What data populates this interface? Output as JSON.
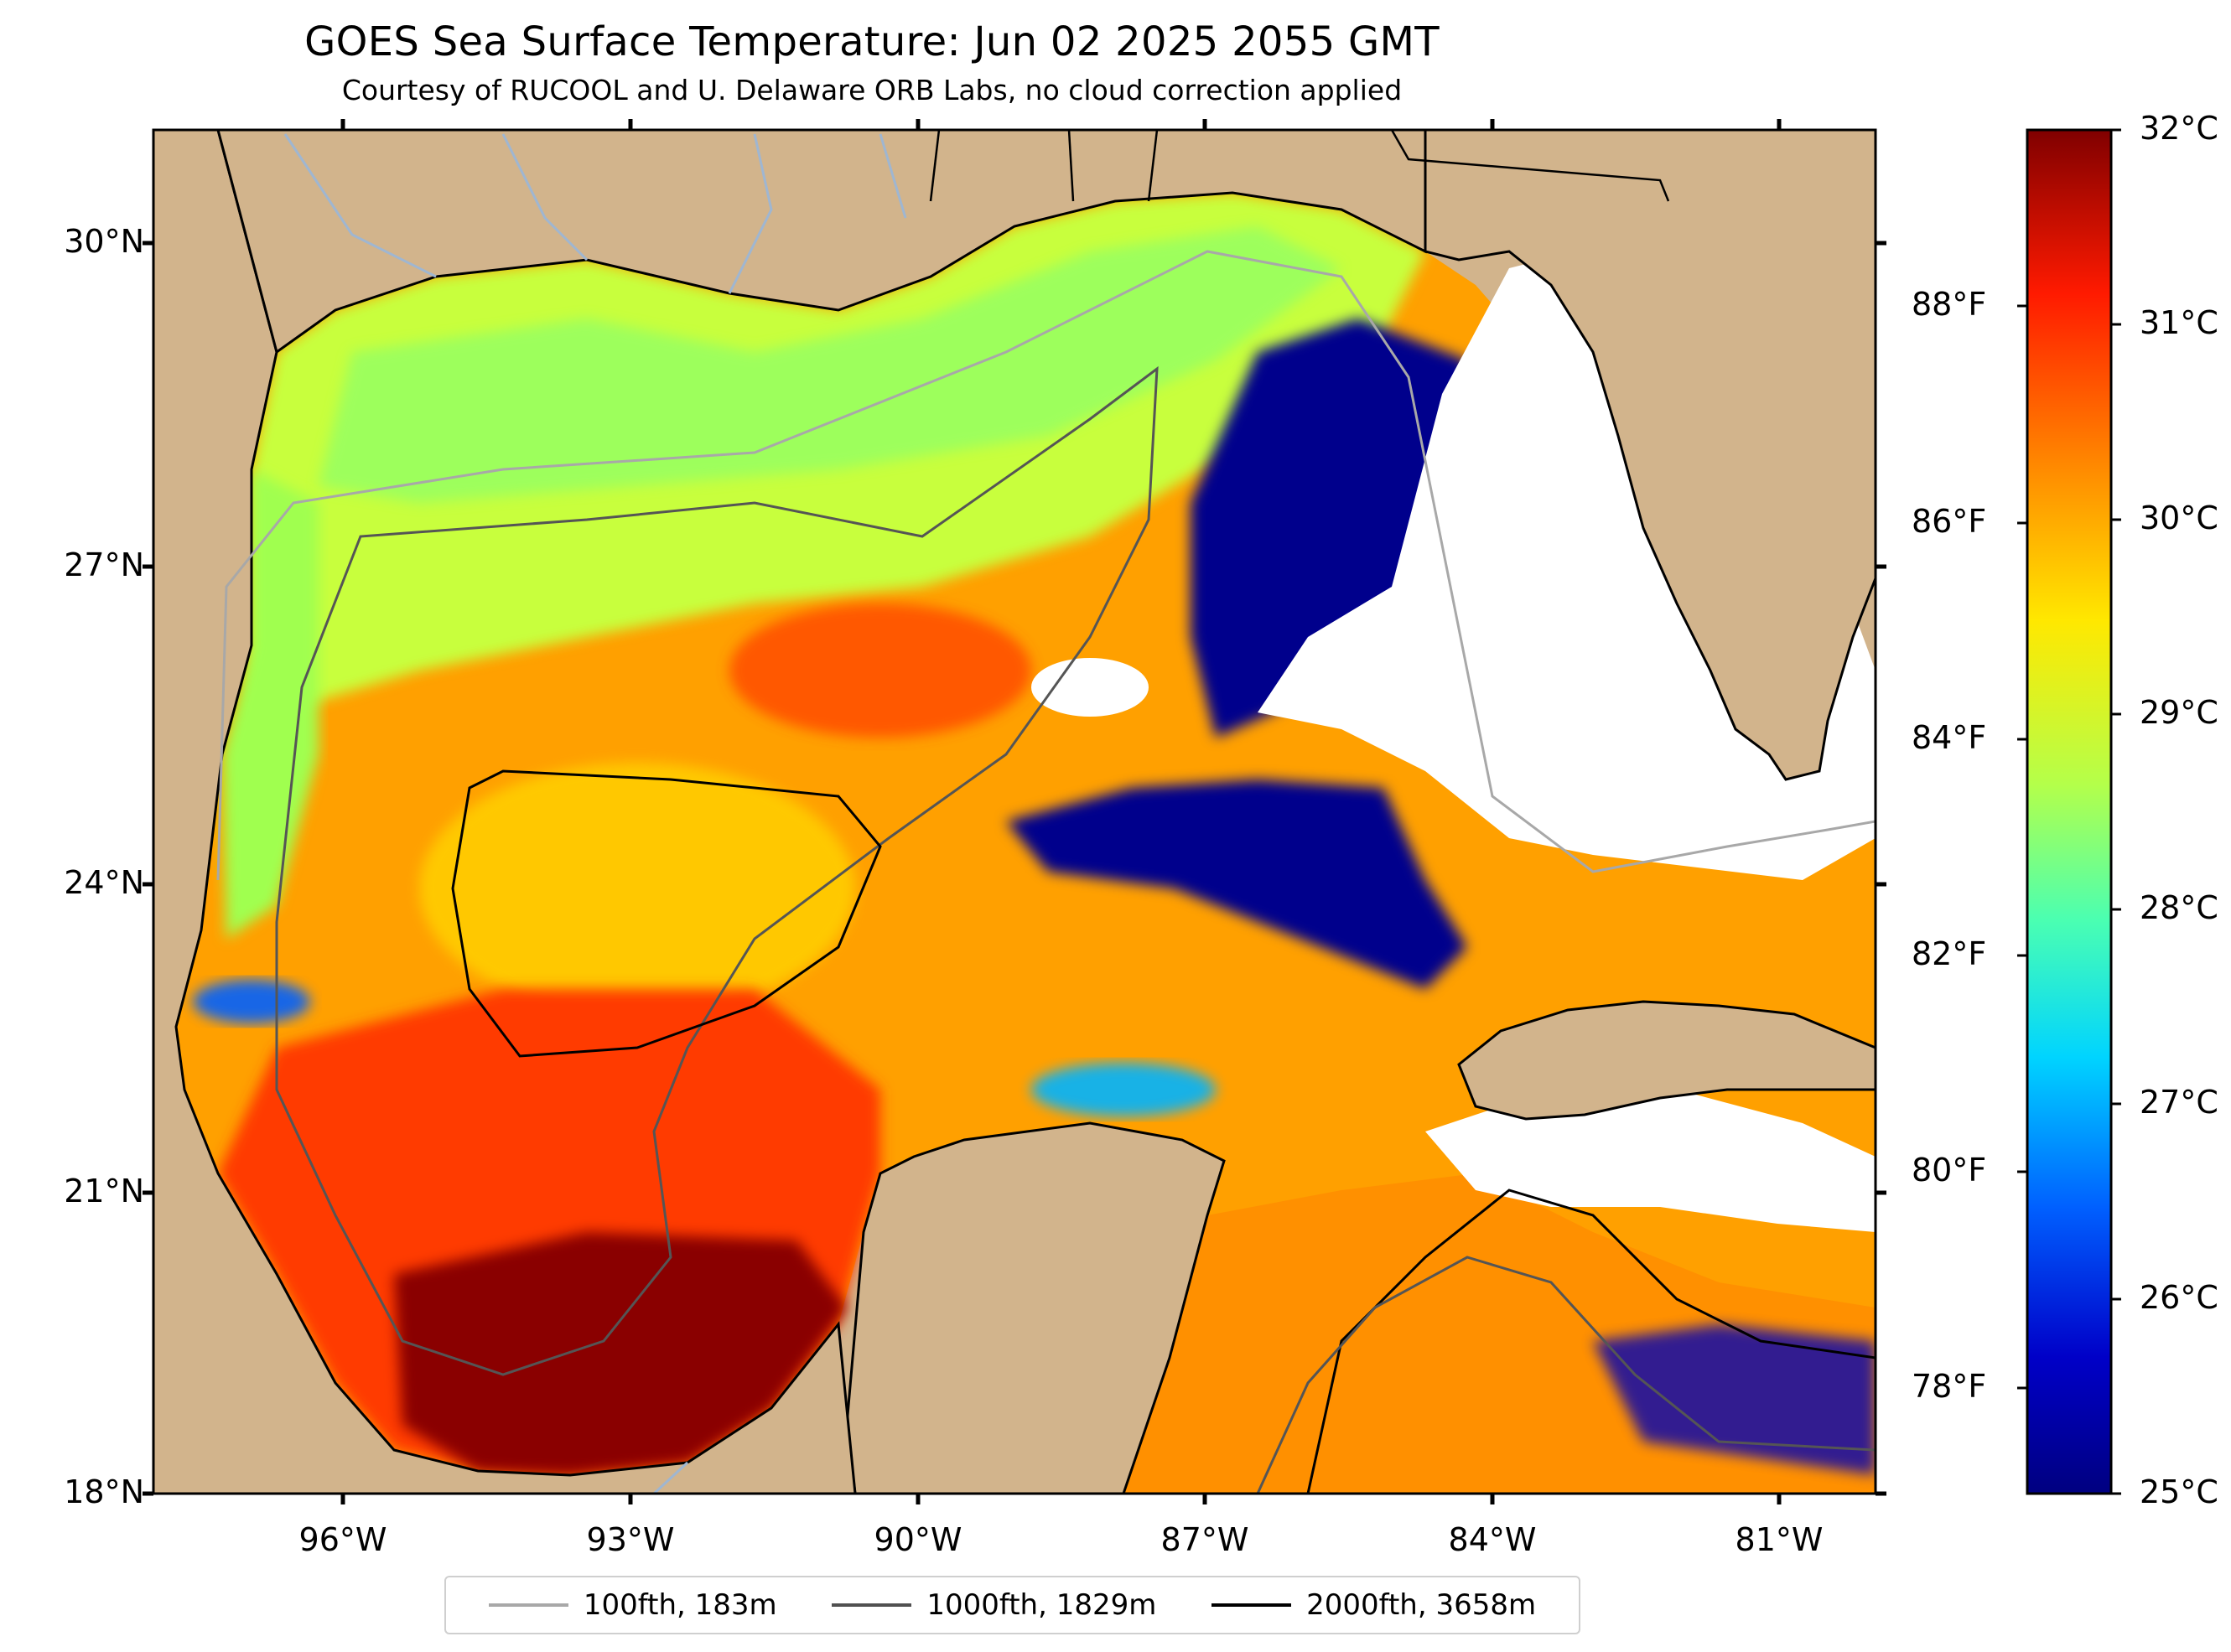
{
  "header": {
    "title": "GOES Sea Surface Temperature: Jun 02 2025 2055 GMT",
    "subtitle": "Courtesy of RUCOOL and U. Delaware ORB Labs, no cloud correction applied"
  },
  "axes": {
    "lat_labels": [
      "30°N",
      "27°N",
      "24°N",
      "21°N",
      "18°N"
    ],
    "lon_labels": [
      "96°W",
      "93°W",
      "90°W",
      "87°W",
      "84°W",
      "81°W"
    ]
  },
  "colorbar": {
    "celsius_labels": [
      "32°C",
      "31°C",
      "30°C",
      "29°C",
      "28°C",
      "27°C",
      "26°C",
      "25°C"
    ],
    "fahrenheit_labels": [
      "88°F",
      "86°F",
      "84°F",
      "82°F",
      "80°F",
      "78°F"
    ],
    "colors": [
      "#800000",
      "#ff2000",
      "#ff8c00",
      "#ffe800",
      "#b4ff4a",
      "#4affb2",
      "#00d4ff",
      "#0060ff",
      "#0000c8",
      "#000080"
    ]
  },
  "legend": {
    "items": [
      {
        "label": "100fth, 183m",
        "color": "#a8a8a8"
      },
      {
        "label": "1000fth, 1829m",
        "color": "#505050"
      },
      {
        "label": "2000fth, 3658m",
        "color": "#000000"
      }
    ]
  },
  "map_colors": {
    "land": "#d2b48c",
    "no_data": "#ffffff",
    "river": "#9fb6d1",
    "lake": "#b8b8b8"
  }
}
